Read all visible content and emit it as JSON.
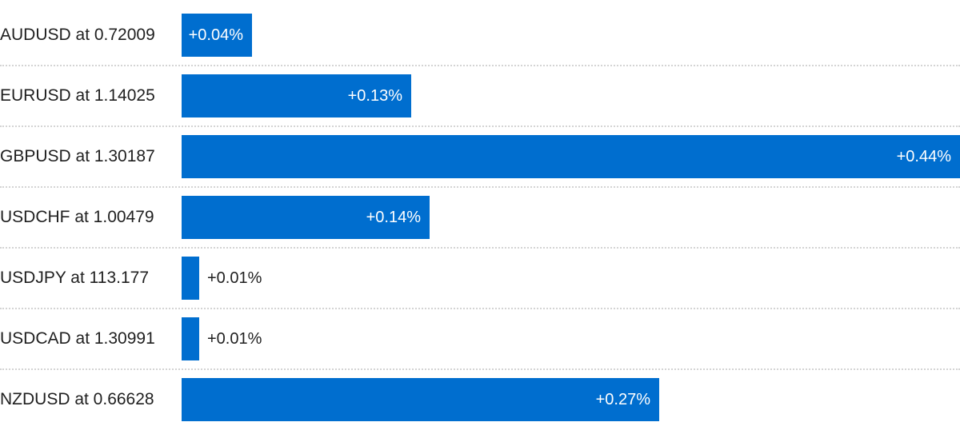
{
  "chart_data": {
    "type": "bar",
    "orientation": "horizontal",
    "categories": [
      "AUDUSD at 0.72009",
      "EURUSD at 1.14025",
      "GBPUSD at 1.30187",
      "USDCHF at 1.00479",
      "USDJPY at 113.177",
      "USDCAD at 1.30991",
      "NZDUSD at 0.66628"
    ],
    "values": [
      0.04,
      0.13,
      0.44,
      0.14,
      0.01,
      0.01,
      0.27
    ],
    "value_labels": [
      "+0.04%",
      "+0.13%",
      "+0.44%",
      "+0.14%",
      "+0.01%",
      "+0.01%",
      "+0.27%"
    ],
    "xlim": [
      0,
      0.44
    ],
    "title": "",
    "xlabel": "",
    "ylabel": "",
    "grid": false,
    "bar_color": "#006ecf",
    "separator_color": "#d4d4d4"
  }
}
